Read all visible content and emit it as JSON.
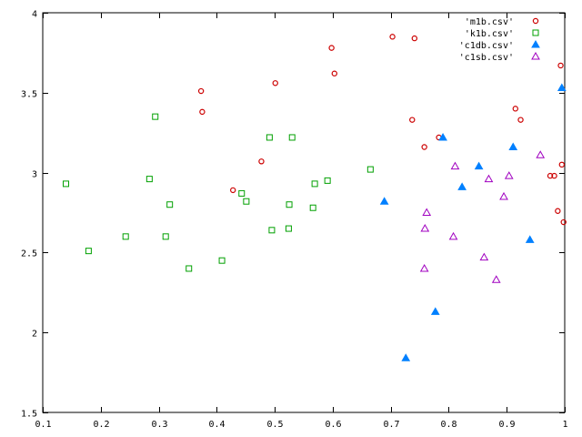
{
  "chart_data": {
    "type": "scatter",
    "title": "",
    "xlabel": "",
    "ylabel": "",
    "xlim": [
      0.1,
      1.0
    ],
    "ylim": [
      1.5,
      4.0
    ],
    "x_ticks": [
      0.1,
      0.2,
      0.3,
      0.4,
      0.5,
      0.6,
      0.7,
      0.8,
      0.9,
      1.0
    ],
    "x_tick_labels": [
      "0.1",
      "0.2",
      "0.3",
      "0.4",
      "0.5",
      "0.6",
      "0.7",
      "0.8",
      "0.9",
      "1"
    ],
    "y_ticks": [
      1.5,
      2.0,
      2.5,
      3.0,
      3.5,
      4.0
    ],
    "y_tick_labels": [
      "1.5",
      "2",
      "2.5",
      "3",
      "3.5",
      "4"
    ],
    "grid": false,
    "legend_position": "top-right",
    "series": [
      {
        "name": "'m1b.csv'",
        "marker": "circle",
        "filled": false,
        "color": "#cc0000",
        "points": [
          [
            0.373,
            3.51
          ],
          [
            0.375,
            3.38
          ],
          [
            0.428,
            2.89
          ],
          [
            0.477,
            3.07
          ],
          [
            0.501,
            3.56
          ],
          [
            0.598,
            3.78
          ],
          [
            0.603,
            3.62
          ],
          [
            0.703,
            3.85
          ],
          [
            0.741,
            3.84
          ],
          [
            0.737,
            3.33
          ],
          [
            0.758,
            3.16
          ],
          [
            0.783,
            3.22
          ],
          [
            0.915,
            3.4
          ],
          [
            0.924,
            3.33
          ],
          [
            0.975,
            2.98
          ],
          [
            0.982,
            2.98
          ],
          [
            0.988,
            2.76
          ],
          [
            0.993,
            3.67
          ],
          [
            0.995,
            3.05
          ],
          [
            0.998,
            2.69
          ]
        ]
      },
      {
        "name": "'k1b.csv'",
        "marker": "square",
        "filled": false,
        "color": "#00a000",
        "points": [
          [
            0.14,
            2.93
          ],
          [
            0.179,
            2.51
          ],
          [
            0.243,
            2.6
          ],
          [
            0.284,
            2.96
          ],
          [
            0.294,
            3.35
          ],
          [
            0.312,
            2.6
          ],
          [
            0.319,
            2.8
          ],
          [
            0.352,
            2.4
          ],
          [
            0.409,
            2.45
          ],
          [
            0.443,
            2.87
          ],
          [
            0.451,
            2.82
          ],
          [
            0.491,
            3.22
          ],
          [
            0.495,
            2.64
          ],
          [
            0.524,
            2.65
          ],
          [
            0.525,
            2.8
          ],
          [
            0.53,
            3.22
          ],
          [
            0.566,
            2.78
          ],
          [
            0.569,
            2.93
          ],
          [
            0.591,
            2.95
          ],
          [
            0.665,
            3.02
          ]
        ]
      },
      {
        "name": "'c1db.csv'",
        "marker": "triangle",
        "filled": true,
        "color": "#0080ff",
        "points": [
          [
            0.689,
            2.82
          ],
          [
            0.726,
            1.84
          ],
          [
            0.777,
            2.13
          ],
          [
            0.79,
            3.22
          ],
          [
            0.823,
            2.91
          ],
          [
            0.852,
            3.04
          ],
          [
            0.911,
            3.16
          ],
          [
            0.94,
            2.58
          ],
          [
            0.995,
            3.53
          ]
        ]
      },
      {
        "name": "'c1sb.csv'",
        "marker": "triangle",
        "filled": false,
        "color": "#a000c0",
        "points": [
          [
            0.758,
            2.4
          ],
          [
            0.759,
            2.65
          ],
          [
            0.762,
            2.75
          ],
          [
            0.808,
            2.6
          ],
          [
            0.811,
            3.04
          ],
          [
            0.861,
            2.47
          ],
          [
            0.869,
            2.96
          ],
          [
            0.882,
            2.33
          ],
          [
            0.895,
            2.85
          ],
          [
            0.904,
            2.98
          ],
          [
            0.958,
            3.11
          ]
        ]
      }
    ]
  }
}
